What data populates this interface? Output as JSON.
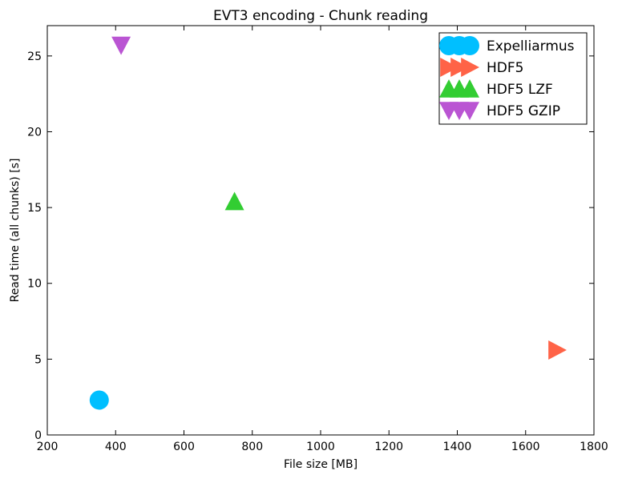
{
  "chart_data": {
    "type": "scatter",
    "title": "EVT3 encoding - Chunk reading",
    "xlabel": "File size [MB]",
    "ylabel": "Read time (all chunks) [s]",
    "xlim": [
      200,
      1800
    ],
    "ylim": [
      0,
      27
    ],
    "xticks": [
      200,
      400,
      600,
      800,
      1000,
      1200,
      1400,
      1600,
      1800
    ],
    "yticks": [
      0,
      5,
      10,
      15,
      20,
      25
    ],
    "grid": false,
    "legend_position": "upper-right",
    "series": [
      {
        "name": "Expelliarmus",
        "marker": "circle",
        "color": "#00bfff",
        "x": [
          352
        ],
        "y": [
          2.3
        ]
      },
      {
        "name": "HDF5",
        "marker": "triangle-right",
        "color": "#ff6347",
        "x": [
          1692
        ],
        "y": [
          5.6
        ]
      },
      {
        "name": "HDF5 LZF",
        "marker": "triangle-up",
        "color": "#32cd32",
        "x": [
          748
        ],
        "y": [
          15.4
        ]
      },
      {
        "name": "HDF5 GZIP",
        "marker": "triangle-down",
        "color": "#ba55d3",
        "x": [
          416
        ],
        "y": [
          25.7
        ]
      }
    ]
  }
}
